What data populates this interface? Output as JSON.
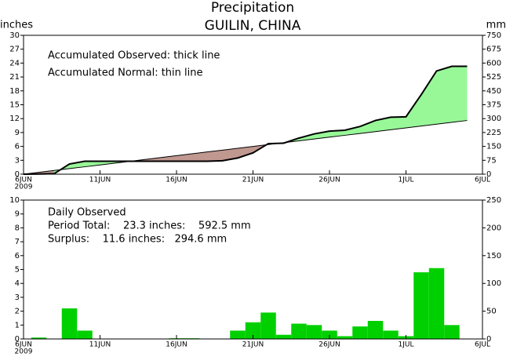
{
  "chart_data": [
    {
      "type": "line",
      "title": "Precipitation",
      "subtitle": "GUILIN, CHINA",
      "y_label": "inches",
      "y2_label": "mm",
      "annotations": [
        "Accumulated Observed: thick line",
        "Accumulated Normal: thin line"
      ],
      "year_label": "2009",
      "x": [
        0,
        1,
        2,
        3,
        4,
        5,
        6,
        7,
        8,
        9,
        10,
        11,
        12,
        13,
        14,
        15,
        16,
        17,
        18,
        19,
        20,
        21,
        22,
        23,
        24,
        25,
        26,
        27,
        28,
        29
      ],
      "series": [
        {
          "name": "Accumulated Observed",
          "color": "#000000",
          "line_width": 2,
          "values": [
            0,
            0.05,
            0.1,
            2.2,
            2.8,
            2.8,
            2.8,
            2.8,
            2.8,
            2.8,
            2.8,
            2.8,
            2.8,
            2.9,
            3.5,
            4.6,
            6.6,
            6.7,
            7.8,
            8.7,
            9.3,
            9.5,
            10.3,
            11.6,
            12.3,
            12.4,
            17.2,
            22.3,
            23.3,
            23.3
          ]
        },
        {
          "name": "Accumulated Normal",
          "color": "#000000",
          "line_width": 1,
          "values": [
            0,
            0.4,
            0.8,
            1.2,
            1.6,
            2.0,
            2.4,
            2.8,
            3.2,
            3.6,
            4.0,
            4.4,
            4.8,
            5.2,
            5.6,
            6.0,
            6.4,
            6.8,
            7.2,
            7.6,
            8.0,
            8.4,
            8.8,
            9.2,
            9.6,
            10.0,
            10.4,
            10.8,
            11.2,
            11.6
          ]
        }
      ],
      "fill_above_color": "#98f898",
      "fill_below_color": "#c09890",
      "xlim": [
        0,
        30
      ],
      "xticks": [
        {
          "value": 0,
          "label": "6JUN"
        },
        {
          "value": 5,
          "label": "11JUN"
        },
        {
          "value": 10,
          "label": "16JUN"
        },
        {
          "value": 15,
          "label": "21JUN"
        },
        {
          "value": 20,
          "label": "26JUN"
        },
        {
          "value": 25,
          "label": "1JUL"
        },
        {
          "value": 30,
          "label": "6JUL"
        }
      ],
      "ylim": [
        0,
        30
      ],
      "yticks": [
        0,
        3,
        6,
        9,
        12,
        15,
        18,
        21,
        24,
        27,
        30
      ],
      "y2lim": [
        0,
        750
      ],
      "y2ticks": [
        0,
        75,
        150,
        225,
        300,
        375,
        450,
        525,
        600,
        675,
        750
      ]
    },
    {
      "type": "bar",
      "annotations": [
        "Daily Observed",
        "Period Total:    23.3 inches:    592.5 mm",
        "Surplus:    11.6 inches:   294.6 mm"
      ],
      "year_label": "2009",
      "x": [
        1,
        2,
        3,
        4,
        5,
        6,
        7,
        8,
        9,
        10,
        11,
        12,
        13,
        14,
        15,
        16,
        17,
        18,
        19,
        20,
        21,
        22,
        23,
        24,
        25,
        26,
        27,
        28
      ],
      "values": [
        0.1,
        0,
        2.2,
        0.6,
        0,
        0,
        0,
        0,
        0,
        0.05,
        0.05,
        0,
        0,
        0.6,
        1.2,
        1.9,
        0.3,
        1.1,
        1.0,
        0.6,
        0.2,
        0.9,
        1.3,
        0.6,
        0.2,
        4.8,
        5.1,
        1.0
      ],
      "color": "#00d000",
      "xlim": [
        0,
        30
      ],
      "xticks": [
        {
          "value": 0,
          "label": "6JUN"
        },
        {
          "value": 5,
          "label": "11JUN"
        },
        {
          "value": 10,
          "label": "16JUN"
        },
        {
          "value": 15,
          "label": "21JUN"
        },
        {
          "value": 20,
          "label": "26JUN"
        },
        {
          "value": 25,
          "label": "1JUL"
        },
        {
          "value": 30,
          "label": "6JUL"
        }
      ],
      "ylim": [
        0,
        10
      ],
      "yticks": [
        0,
        1,
        2,
        3,
        4,
        5,
        6,
        7,
        8,
        9,
        10
      ],
      "y2lim": [
        0,
        250
      ],
      "y2ticks": [
        0,
        50,
        100,
        150,
        200,
        250
      ]
    }
  ]
}
